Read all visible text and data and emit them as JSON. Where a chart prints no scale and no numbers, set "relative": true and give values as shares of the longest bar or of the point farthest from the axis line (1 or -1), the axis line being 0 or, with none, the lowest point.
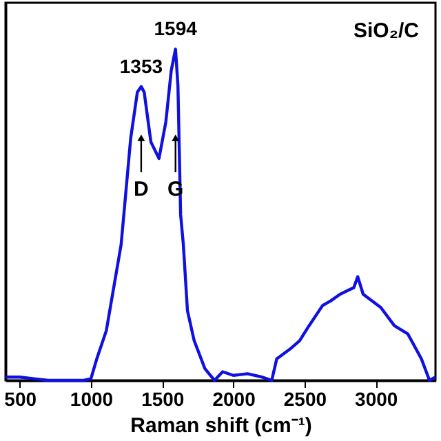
{
  "chart_data": {
    "type": "line",
    "relative": true,
    "xlabel": "Raman shift (cm⁻¹)",
    "xlim": [
      400,
      3420
    ],
    "xticks": [
      500,
      1000,
      1500,
      2000,
      2500,
      3000
    ],
    "tick_labels": "x",
    "grid": false,
    "marker": "none",
    "line_style": "solid",
    "series": [
      {
        "color": "#1010e0",
        "x": [
          400,
          500,
          600,
          700,
          800,
          950,
          1000,
          1041,
          1108,
          1212,
          1231,
          1279,
          1326,
          1353,
          1374,
          1421,
          1478,
          1526,
          1564,
          1594,
          1611,
          1630,
          1649,
          1678,
          1725,
          1801,
          1868,
          1925,
          2000,
          2100,
          2200,
          2270,
          2305,
          2400,
          2466,
          2532,
          2627,
          2684,
          2750,
          2846,
          2874,
          2912,
          3036,
          3131,
          3226,
          3321,
          3378,
          3420
        ],
        "values": [
          0.01,
          0.01,
          0.005,
          0.0,
          0.0,
          0.0,
          0.005,
          0.065,
          0.15,
          0.41,
          0.5,
          0.73,
          0.87,
          0.887,
          0.87,
          0.72,
          0.67,
          0.78,
          0.935,
          1.0,
          0.89,
          0.5,
          0.41,
          0.21,
          0.12,
          0.035,
          0.0,
          0.026,
          0.015,
          0.02,
          0.01,
          0.0,
          0.065,
          0.095,
          0.12,
          0.165,
          0.226,
          0.24,
          0.26,
          0.28,
          0.313,
          0.26,
          0.22,
          0.165,
          0.14,
          0.065,
          0.0,
          0.01
        ]
      }
    ],
    "annotations": [
      {
        "text": "1353",
        "x": 1353,
        "y": 0.887
      },
      {
        "text": "1594",
        "x": 1594,
        "y": 1.0
      },
      "SiO₂/C",
      "D",
      "G"
    ]
  }
}
